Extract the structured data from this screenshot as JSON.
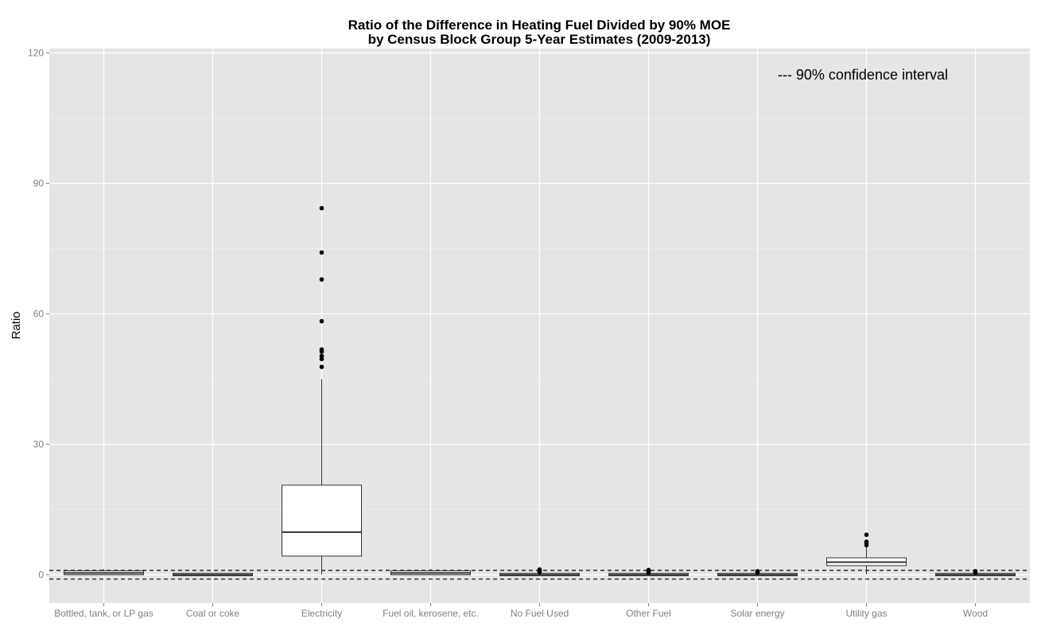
{
  "chart_data": {
    "type": "box",
    "title": "Ratio of the Difference in Heating Fuel Divided by 90% MOE",
    "subtitle": "by Census Block Group 5-Year Estimates (2009-2013)",
    "xlabel": "",
    "ylabel": "Ratio",
    "ylim": [
      -6.5,
      121
    ],
    "yticks": [
      0,
      30,
      60,
      90,
      120
    ],
    "ytick_labels": [
      "0",
      "30",
      "60",
      "90",
      "120"
    ],
    "grid": true,
    "background": "#e5e5e5",
    "grid_color": "#ffffff",
    "annotation": "--- 90% confidence interval",
    "annotation_position": "top-right",
    "reference_lines": [
      1,
      -1
    ],
    "categories": [
      "Bottled, tank, or LP gas",
      "Coal or coke",
      "Electricity",
      "Fuel oil, kerosene, etc.",
      "No Fuel Used",
      "Other Fuel",
      "Solar energy",
      "Utility gas",
      "Wood"
    ],
    "boxes": [
      {
        "category": "Bottled, tank, or LP gas",
        "lower_whisker": 0,
        "q1": 0,
        "median": 0.4,
        "q3": 0.9,
        "upper_whisker": 1.3,
        "outliers": []
      },
      {
        "category": "Coal or coke",
        "lower_whisker": 0,
        "q1": 0,
        "median": 0,
        "q3": 0.1,
        "upper_whisker": 0.2,
        "outliers": []
      },
      {
        "category": "Electricity",
        "lower_whisker": 0,
        "q1": 4.3,
        "median": 9.8,
        "q3": 20.6,
        "upper_whisker": 45,
        "outliers": [
          47.8,
          49.6,
          50.3,
          51.3,
          51.8,
          58.3,
          67.9,
          74.1,
          84.3
        ]
      },
      {
        "category": "Fuel oil, kerosene, etc.",
        "lower_whisker": 0,
        "q1": 0,
        "median": 0.4,
        "q3": 0.9,
        "upper_whisker": 1.3,
        "outliers": []
      },
      {
        "category": "No Fuel Used",
        "lower_whisker": 0,
        "q1": 0,
        "median": 0,
        "q3": 0.1,
        "upper_whisker": 0.3,
        "outliers": [
          0.6,
          0.9,
          1.2
        ]
      },
      {
        "category": "Other Fuel",
        "lower_whisker": 0,
        "q1": 0,
        "median": 0,
        "q3": 0.1,
        "upper_whisker": 0.3,
        "outliers": [
          0.5,
          0.8,
          1.1
        ]
      },
      {
        "category": "Solar energy",
        "lower_whisker": 0,
        "q1": 0,
        "median": 0,
        "q3": 0.1,
        "upper_whisker": 0.3,
        "outliers": [
          0.5,
          0.8
        ]
      },
      {
        "category": "Utility gas",
        "lower_whisker": 0.1,
        "q1": 2.1,
        "median": 2.9,
        "q3": 3.9,
        "upper_whisker": 6.4,
        "outliers": [
          6.8,
          7.2,
          7.6,
          9.2
        ]
      },
      {
        "category": "Wood",
        "lower_whisker": 0,
        "q1": 0,
        "median": 0,
        "q3": 0.1,
        "upper_whisker": 0.3,
        "outliers": [
          0.5,
          0.8
        ]
      }
    ]
  }
}
